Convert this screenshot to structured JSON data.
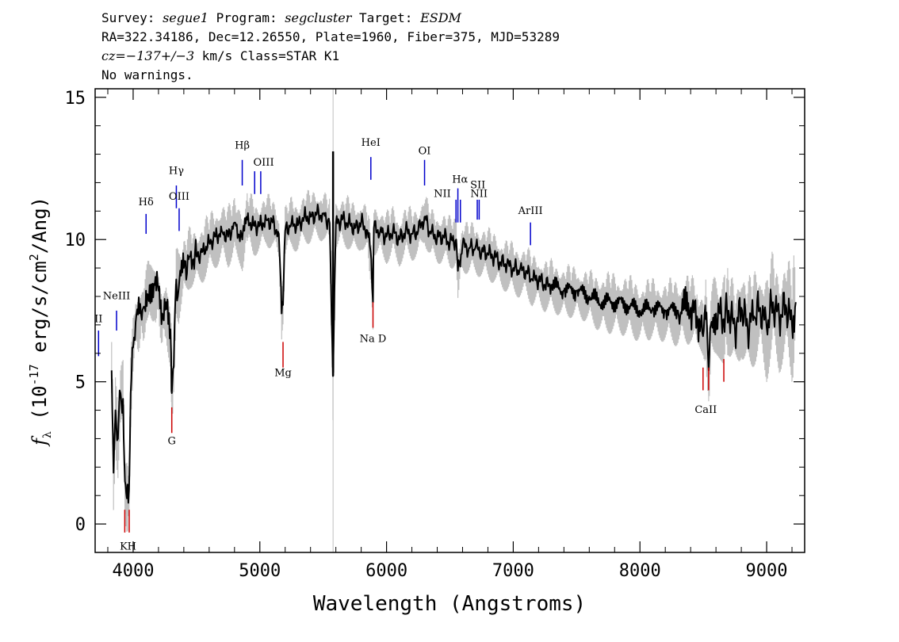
{
  "header": {
    "survey_label": "Survey:",
    "survey": "segue1",
    "program_label": "Program:",
    "program": "segcluster",
    "target_label": "Target:",
    "target": "ESDM",
    "line2": "RA=322.34186, Dec=12.26550, Plate=1960, Fiber=375, MJD=53289",
    "cz_label": "cz=",
    "cz_value": "−137+/−3",
    "cz_rest": " km/s Class=STAR K1",
    "line4": "No warnings."
  },
  "chart_data": {
    "type": "line",
    "xlabel": "Wavelength (Angstroms)",
    "ylabel": "f_λ (10^-17 erg/s/cm^2/Ang)",
    "xlim": [
      3700,
      9300
    ],
    "ylim": [
      -1,
      15.3
    ],
    "x_ticks": [
      4000,
      5000,
      6000,
      7000,
      8000,
      9000
    ],
    "y_ticks": [
      0,
      5,
      10,
      15
    ],
    "sky_line_x": 5578,
    "series": [
      {
        "role": "flux",
        "color": "#000000",
        "x": [
          3830,
          3845,
          3860,
          3880,
          3900,
          3920,
          3935,
          3950,
          3968,
          3980,
          4000,
          4020,
          4050,
          4080,
          4102,
          4130,
          4170,
          4200,
          4230,
          4260,
          4300,
          4305,
          4320,
          4340,
          4360,
          4400,
          4450,
          4500,
          4550,
          4600,
          4650,
          4700,
          4750,
          4800,
          4861,
          4900,
          4950,
          5000,
          5050,
          5100,
          5150,
          5172,
          5183,
          5200,
          5250,
          5300,
          5350,
          5400,
          5450,
          5500,
          5550,
          5577,
          5600,
          5650,
          5700,
          5750,
          5800,
          5850,
          5880,
          5893,
          5900,
          5950,
          6000,
          6050,
          6100,
          6150,
          6200,
          6250,
          6300,
          6350,
          6400,
          6450,
          6500,
          6550,
          6563,
          6600,
          6650,
          6700,
          6750,
          6800,
          6850,
          6900,
          6950,
          7000,
          7050,
          7100,
          7150,
          7200,
          7250,
          7300,
          7400,
          7500,
          7600,
          7700,
          7800,
          7900,
          8000,
          8100,
          8200,
          8300,
          8400,
          8450,
          8498,
          8520,
          8542,
          8560,
          8600,
          8662,
          8700,
          8750,
          8800,
          8850,
          8900,
          8950,
          9000,
          9050,
          9100,
          9150,
          9200,
          9230
        ],
        "values": [
          5.4,
          1.8,
          4.0,
          3.0,
          4.6,
          4.4,
          1.5,
          0.9,
          1.2,
          4.6,
          6.2,
          7.1,
          7.4,
          7.6,
          8.2,
          8.4,
          8.4,
          8.2,
          7.4,
          7.8,
          6.0,
          4.6,
          5.5,
          8.6,
          8.3,
          9.0,
          9.4,
          9.4,
          9.6,
          9.9,
          10.1,
          10.3,
          10.1,
          10.6,
          10.0,
          10.7,
          10.5,
          10.5,
          10.7,
          10.6,
          10.2,
          7.4,
          7.7,
          10.3,
          10.6,
          10.5,
          10.8,
          10.8,
          10.9,
          10.9,
          10.6,
          5.2,
          10.6,
          10.7,
          10.6,
          10.4,
          10.6,
          10.3,
          9.3,
          7.8,
          10.4,
          10.3,
          10.1,
          10.3,
          10.0,
          10.3,
          10.2,
          10.3,
          10.8,
          10.2,
          10.1,
          10.1,
          9.9,
          10.0,
          8.9,
          9.8,
          9.7,
          9.7,
          9.6,
          9.5,
          9.4,
          9.2,
          9.1,
          9.0,
          8.9,
          8.9,
          8.6,
          8.6,
          8.4,
          8.4,
          8.2,
          8.2,
          8.0,
          7.8,
          7.8,
          7.7,
          7.5,
          7.6,
          7.5,
          7.5,
          7.6,
          7.3,
          6.6,
          7.2,
          5.4,
          7.0,
          7.4,
          7.2,
          7.5,
          6.8,
          7.6,
          6.9,
          7.3,
          7.6,
          6.9,
          7.8,
          7.2,
          7.7,
          7.0,
          7.8
        ]
      },
      {
        "role": "error",
        "color": "#c0c0c0",
        "values": [
          0.9,
          1.0,
          0.9,
          0.9,
          0.9,
          0.9,
          0.8,
          0.8,
          0.8,
          0.8,
          0.8,
          0.8,
          0.8,
          0.8,
          0.8,
          0.8,
          0.8,
          0.8,
          0.8,
          0.8,
          0.8,
          0.8,
          0.8,
          0.8,
          0.8,
          0.7,
          0.7,
          0.7,
          0.7,
          0.7,
          0.7,
          0.7,
          0.7,
          0.7,
          0.7,
          0.7,
          0.7,
          0.6,
          0.6,
          0.6,
          0.6,
          0.6,
          0.6,
          0.6,
          0.6,
          0.6,
          0.6,
          0.6,
          0.6,
          0.6,
          0.6,
          2.0,
          0.6,
          0.6,
          0.6,
          0.6,
          0.6,
          0.6,
          0.6,
          0.6,
          0.6,
          0.6,
          0.6,
          0.6,
          0.6,
          0.6,
          0.6,
          0.6,
          0.6,
          0.6,
          0.6,
          0.6,
          0.6,
          0.6,
          0.6,
          0.6,
          0.6,
          0.6,
          0.6,
          0.6,
          0.6,
          0.6,
          0.6,
          0.6,
          0.6,
          0.6,
          0.6,
          0.6,
          0.6,
          0.6,
          0.6,
          0.6,
          0.6,
          0.7,
          0.7,
          0.7,
          0.7,
          0.7,
          0.7,
          0.8,
          0.8,
          0.8,
          0.9,
          0.9,
          0.9,
          0.9,
          0.9,
          1.0,
          1.0,
          1.0,
          1.1,
          1.1,
          1.1,
          1.1,
          1.2,
          1.2,
          1.2,
          1.2,
          1.3,
          1.3
        ]
      }
    ],
    "emission_lines": [
      {
        "label": "II",
        "x": 3727,
        "y0": 5.9,
        "y1": 6.8,
        "ty": 7.1
      },
      {
        "label": "NeIII",
        "x": 3869,
        "y0": 6.8,
        "y1": 7.5,
        "ty": 7.9
      },
      {
        "label": "Hδ",
        "x": 4102,
        "y0": 10.2,
        "y1": 10.9,
        "ty": 11.2
      },
      {
        "label": "Hγ",
        "x": 4341,
        "y0": 11.1,
        "y1": 11.9,
        "ty": 12.3
      },
      {
        "label": "OIII",
        "x": 4363,
        "y0": 10.3,
        "y1": 11.1,
        "ty": 11.4
      },
      {
        "label": "Hβ",
        "x": 4861,
        "y0": 11.9,
        "y1": 12.8,
        "ty": 13.2
      },
      {
        "label": "OIII",
        "x": 4959,
        "y0": 11.6,
        "y1": 12.4
      },
      {
        "label": "OIII",
        "x": 5007,
        "y0": 11.6,
        "y1": 12.4,
        "ty": 12.6,
        "tx": 5030
      },
      {
        "label": "HeI",
        "x": 5876,
        "y0": 12.1,
        "y1": 12.9,
        "ty": 13.3
      },
      {
        "label": "OI",
        "x": 6300,
        "y0": 11.9,
        "y1": 12.8,
        "ty": 13.0
      },
      {
        "label": "NII",
        "x": 6548,
        "y0": 10.6,
        "y1": 11.4,
        "ty": 11.5,
        "tx": 6440
      },
      {
        "label": "Hα",
        "x": 6563,
        "y0": 10.6,
        "y1": 11.8,
        "ty": 12.0,
        "tx": 6580
      },
      {
        "label": "NII",
        "x": 6583,
        "y0": 10.6,
        "y1": 11.4
      },
      {
        "label": "SII",
        "x": 6716,
        "y0": 10.7,
        "y1": 11.4,
        "ty": 11.8,
        "tx": 6720
      },
      {
        "label": "NII",
        "x": 6731,
        "y0": 10.7,
        "y1": 11.4,
        "ty": 11.5,
        "tx": 6730
      },
      {
        "label": "ArIII",
        "x": 7136,
        "y0": 9.8,
        "y1": 10.6,
        "ty": 10.9
      }
    ],
    "absorption_lines": [
      {
        "label": "K",
        "x": 3934,
        "y0": -0.3,
        "y1": 0.5,
        "ty": -0.9,
        "tx": 3925
      },
      {
        "label": "H",
        "x": 3969,
        "y0": -0.3,
        "y1": 0.5,
        "ty": -0.9,
        "tx": 3990
      },
      {
        "label": "G",
        "x": 4305,
        "y0": 3.2,
        "y1": 4.1,
        "ty": 2.8
      },
      {
        "label": "Mg",
        "x": 5183,
        "y0": 5.5,
        "y1": 6.4,
        "ty": 5.2
      },
      {
        "label": "Na D",
        "x": 5893,
        "y0": 6.9,
        "y1": 7.8,
        "ty": 6.4
      },
      {
        "label": "CaII",
        "x": 8498,
        "y0": 4.7,
        "y1": 5.5,
        "ty": 3.9,
        "tx": 8520
      },
      {
        "label": "CaII",
        "x": 8542,
        "y0": 4.7,
        "y1": 5.5
      },
      {
        "label": "CaII",
        "x": 8662,
        "y0": 5.0,
        "y1": 5.8
      }
    ]
  }
}
